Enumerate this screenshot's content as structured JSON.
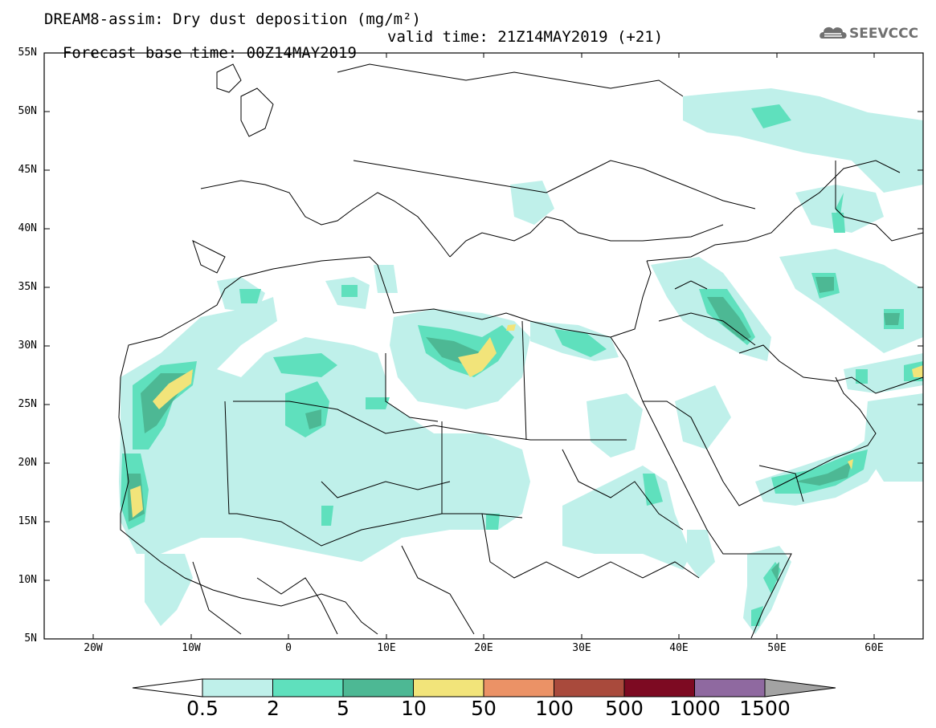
{
  "header": {
    "title_line1": "DREAM8-assim: Dry dust deposition (mg/m²)",
    "title_line2_base": "Forecast base time: 00Z14MAY2019",
    "title_line2_valid": "valid time: 21Z14MAY2019 (+21)"
  },
  "logo": {
    "text": "SEEVCCC",
    "icon": "cloud-logo-icon"
  },
  "map": {
    "lat_labels": [
      "55N",
      "50N",
      "45N",
      "40N",
      "35N",
      "30N",
      "25N",
      "20N",
      "15N",
      "10N",
      "5N"
    ],
    "lon_labels": [
      "20W",
      "10W",
      "0",
      "10E",
      "20E",
      "30E",
      "40E",
      "50E",
      "60E"
    ]
  },
  "colorbar": {
    "labels": [
      "0.5",
      "2",
      "5",
      "10",
      "50",
      "100",
      "500",
      "1000",
      "1500"
    ],
    "colors": [
      "#bff0ea",
      "#5fe0bd",
      "#4db894",
      "#f2e47a",
      "#eb9266",
      "#a94a3c",
      "#7d0a22",
      "#8f69a0",
      "#a3a3a3"
    ]
  }
}
